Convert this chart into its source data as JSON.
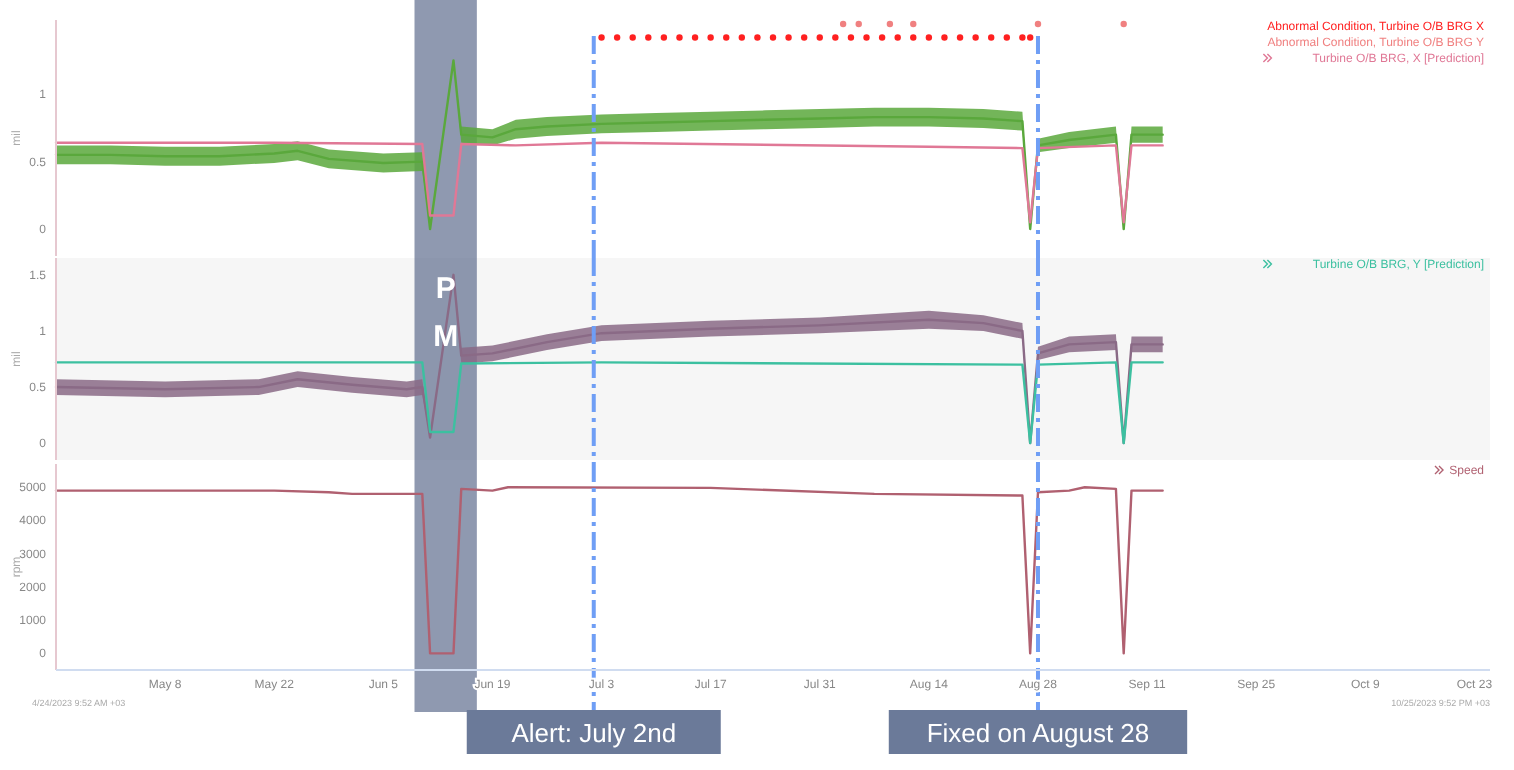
{
  "chart_data": [
    {
      "type": "line",
      "ylabel": "mil",
      "xlim": [
        "2023-04-24",
        "2023-10-25"
      ],
      "ylim": [
        -0.2,
        1.55
      ],
      "yticks": [
        0.0,
        0.5,
        1.0
      ],
      "tick_labels": "y",
      "legend": "top right",
      "series": [
        {
          "type": "scatter",
          "name": "Abnormal Condition, Turbine O/B BRG X",
          "color": "#ff2020",
          "x": [
            "2023-07-03",
            "2023-07-05",
            "2023-07-07",
            "2023-07-09",
            "2023-07-11",
            "2023-07-13",
            "2023-07-15",
            "2023-07-17",
            "2023-07-19",
            "2023-07-21",
            "2023-07-23",
            "2023-07-25",
            "2023-07-27",
            "2023-07-29",
            "2023-07-31",
            "2023-08-02",
            "2023-08-04",
            "2023-08-06",
            "2023-08-08",
            "2023-08-10",
            "2023-08-12",
            "2023-08-14",
            "2023-08-16",
            "2023-08-18",
            "2023-08-20",
            "2023-08-22",
            "2023-08-24",
            "2023-08-26",
            "2023-08-27"
          ],
          "values": [
            1.42,
            1.42,
            1.42,
            1.42,
            1.42,
            1.42,
            1.42,
            1.42,
            1.42,
            1.42,
            1.42,
            1.42,
            1.42,
            1.42,
            1.42,
            1.42,
            1.42,
            1.42,
            1.42,
            1.42,
            1.42,
            1.42,
            1.42,
            1.42,
            1.42,
            1.42,
            1.42,
            1.42,
            1.42
          ]
        },
        {
          "type": "scatter",
          "name": "Abnormal Condition, Turbine O/B BRG Y",
          "color": "#f08080",
          "x": [
            "2023-08-03",
            "2023-08-05",
            "2023-08-09",
            "2023-08-12",
            "2023-08-28",
            "2023-09-08"
          ],
          "values": [
            1.52,
            1.52,
            1.52,
            1.52,
            1.52,
            1.52
          ]
        },
        {
          "name": "Turbine O/B BRG, X [Prediction]",
          "color": "#e07896",
          "x": [
            "2023-04-24",
            "2023-05-22",
            "2023-06-10",
            "2023-06-11",
            "2023-06-14",
            "2023-06-15",
            "2023-06-22",
            "2023-07-03",
            "2023-08-14",
            "2023-08-26",
            "2023-08-27",
            "2023-08-28",
            "2023-09-07",
            "2023-09-08",
            "2023-09-09",
            "2023-09-13"
          ],
          "values": [
            0.64,
            0.64,
            0.63,
            0.1,
            0.1,
            0.63,
            0.62,
            0.64,
            0.61,
            0.6,
            0.05,
            0.6,
            0.62,
            0.05,
            0.62,
            0.62
          ]
        },
        {
          "color": "#5aa83c",
          "x": [
            "2023-04-24",
            "2023-05-01",
            "2023-05-08",
            "2023-05-15",
            "2023-05-22",
            "2023-05-25",
            "2023-05-29",
            "2023-06-05",
            "2023-06-10",
            "2023-06-11",
            "2023-06-14",
            "2023-06-15",
            "2023-06-19",
            "2023-06-22",
            "2023-06-26",
            "2023-07-03",
            "2023-07-10",
            "2023-07-17",
            "2023-07-24",
            "2023-07-31",
            "2023-08-07",
            "2023-08-14",
            "2023-08-21",
            "2023-08-26",
            "2023-08-27",
            "2023-08-28",
            "2023-09-01",
            "2023-09-07",
            "2023-09-08",
            "2023-09-09",
            "2023-09-13"
          ],
          "values": [
            0.55,
            0.55,
            0.54,
            0.54,
            0.56,
            0.58,
            0.52,
            0.49,
            0.5,
            0.0,
            1.25,
            0.7,
            0.68,
            0.74,
            0.76,
            0.78,
            0.79,
            0.8,
            0.81,
            0.82,
            0.83,
            0.83,
            0.82,
            0.8,
            0.0,
            0.62,
            0.66,
            0.7,
            0.0,
            0.7,
            0.7
          ],
          "lower": [
            0.48,
            0.48,
            0.47,
            0.47,
            0.49,
            0.51,
            0.45,
            0.42,
            0.43,
            0.0,
            1.25,
            0.64,
            0.62,
            0.67,
            0.69,
            0.71,
            0.72,
            0.73,
            0.74,
            0.75,
            0.76,
            0.76,
            0.75,
            0.73,
            0.0,
            0.57,
            0.6,
            0.64,
            0.0,
            0.64,
            0.64
          ],
          "upper": [
            0.62,
            0.62,
            0.61,
            0.61,
            0.63,
            0.65,
            0.59,
            0.56,
            0.57,
            0.0,
            1.25,
            0.76,
            0.74,
            0.81,
            0.83,
            0.85,
            0.86,
            0.87,
            0.88,
            0.89,
            0.9,
            0.9,
            0.89,
            0.87,
            0.0,
            0.67,
            0.72,
            0.76,
            0.0,
            0.76,
            0.76
          ]
        }
      ],
      "bands": [
        {
          "axis": "x",
          "from": "2023-06-09",
          "to": "2023-06-17",
          "color": "#4a5a80"
        }
      ],
      "ref_lines": [
        {
          "axis": "x",
          "value": "2023-07-02",
          "color": "#6f9ef5",
          "line_style": "dashed"
        },
        {
          "axis": "x",
          "value": "2023-08-28",
          "color": "#6f9ef5",
          "line_style": "dashed"
        }
      ]
    },
    {
      "type": "line",
      "ylabel": "mil",
      "xlim": [
        "2023-04-24",
        "2023-10-25"
      ],
      "ylim": [
        -0.15,
        1.65
      ],
      "yticks": [
        0.0,
        0.5,
        1.0,
        1.5
      ],
      "tick_labels": "y",
      "legend": "top right",
      "series": [
        {
          "name": "Turbine O/B BRG, Y [Prediction]",
          "color": "#3cc0a0",
          "x": [
            "2023-04-24",
            "2023-06-10",
            "2023-06-11",
            "2023-06-14",
            "2023-06-15",
            "2023-07-03",
            "2023-08-26",
            "2023-08-27",
            "2023-08-28",
            "2023-09-07",
            "2023-09-08",
            "2023-09-09",
            "2023-09-13"
          ],
          "values": [
            0.72,
            0.72,
            0.1,
            0.1,
            0.71,
            0.72,
            0.7,
            0.0,
            0.7,
            0.72,
            0.0,
            0.72,
            0.72
          ]
        },
        {
          "color": "#8a6a86",
          "x": [
            "2023-04-24",
            "2023-05-08",
            "2023-05-20",
            "2023-05-25",
            "2023-06-01",
            "2023-06-08",
            "2023-06-10",
            "2023-06-11",
            "2023-06-14",
            "2023-06-15",
            "2023-06-19",
            "2023-06-26",
            "2023-07-03",
            "2023-07-17",
            "2023-07-31",
            "2023-08-14",
            "2023-08-21",
            "2023-08-26",
            "2023-08-27",
            "2023-08-28",
            "2023-09-01",
            "2023-09-07",
            "2023-09-08",
            "2023-09-09",
            "2023-09-13"
          ],
          "values": [
            0.5,
            0.48,
            0.5,
            0.57,
            0.52,
            0.48,
            0.5,
            0.05,
            1.5,
            0.78,
            0.8,
            0.9,
            0.98,
            1.02,
            1.05,
            1.1,
            1.07,
            1.0,
            0.0,
            0.8,
            0.88,
            0.9,
            0.0,
            0.88,
            0.88
          ],
          "lower": [
            0.43,
            0.41,
            0.43,
            0.5,
            0.45,
            0.41,
            0.43,
            0.05,
            1.5,
            0.71,
            0.73,
            0.83,
            0.91,
            0.95,
            0.98,
            1.02,
            1.0,
            0.93,
            0.0,
            0.74,
            0.81,
            0.83,
            0.0,
            0.81,
            0.81
          ],
          "upper": [
            0.57,
            0.55,
            0.57,
            0.64,
            0.59,
            0.55,
            0.57,
            0.05,
            1.5,
            0.85,
            0.87,
            0.97,
            1.05,
            1.09,
            1.12,
            1.18,
            1.14,
            1.07,
            0.0,
            0.86,
            0.95,
            0.97,
            0.0,
            0.95,
            0.95
          ]
        }
      ],
      "bands": [
        {
          "axis": "x",
          "from": "2023-06-09",
          "to": "2023-06-17",
          "label": "PM",
          "color": "#4a5a80"
        }
      ],
      "ref_lines": [
        {
          "axis": "x",
          "value": "2023-07-02",
          "color": "#6f9ef5",
          "line_style": "dashed"
        },
        {
          "axis": "x",
          "value": "2023-08-28",
          "color": "#6f9ef5",
          "line_style": "dashed"
        }
      ]
    },
    {
      "type": "line",
      "ylabel": "rpm",
      "xlim": [
        "2023-04-24",
        "2023-10-25"
      ],
      "ylim": [
        -500,
        5700
      ],
      "yticks": [
        0,
        1000,
        2000,
        3000,
        4000,
        5000
      ],
      "legend": "top right",
      "xticks": [
        {
          "value": "2023-05-08",
          "label": "May 8"
        },
        {
          "value": "2023-05-22",
          "label": "May 22"
        },
        {
          "value": "2023-06-05",
          "label": "Jun 5"
        },
        {
          "value": "2023-06-19",
          "label": "Jun 19"
        },
        {
          "value": "2023-07-03",
          "label": "Jul 3"
        },
        {
          "value": "2023-07-17",
          "label": "Jul 17"
        },
        {
          "value": "2023-07-31",
          "label": "Jul 31"
        },
        {
          "value": "2023-08-14",
          "label": "Aug 14"
        },
        {
          "value": "2023-08-28",
          "label": "Aug 28"
        },
        {
          "value": "2023-09-11",
          "label": "Sep 11"
        },
        {
          "value": "2023-09-25",
          "label": "Sep 25"
        },
        {
          "value": "2023-10-09",
          "label": "Oct 9"
        },
        {
          "value": "2023-10-23",
          "label": "Oct 23"
        }
      ],
      "series": [
        {
          "name": "Speed",
          "color": "#b06070",
          "x": [
            "2023-04-24",
            "2023-05-22",
            "2023-05-29",
            "2023-06-01",
            "2023-06-10",
            "2023-06-11",
            "2023-06-14",
            "2023-06-15",
            "2023-06-19",
            "2023-06-21",
            "2023-07-17",
            "2023-08-07",
            "2023-08-26",
            "2023-08-27",
            "2023-08-28",
            "2023-09-01",
            "2023-09-03",
            "2023-09-07",
            "2023-09-08",
            "2023-09-09",
            "2023-09-13"
          ],
          "values": [
            4900,
            4900,
            4850,
            4800,
            4800,
            0,
            0,
            4950,
            4900,
            5000,
            4980,
            4800,
            4750,
            0,
            4850,
            4900,
            5000,
            4950,
            0,
            4900,
            4900
          ]
        }
      ],
      "bands": [
        {
          "axis": "x",
          "from": "2023-06-09",
          "to": "2023-06-17",
          "color": "#4a5a80"
        }
      ],
      "ref_lines": [
        {
          "axis": "x",
          "value": "2023-07-02",
          "label": "Alert: July 2nd",
          "color": "#6f9ef5",
          "line_style": "dashed"
        },
        {
          "axis": "x",
          "value": "2023-08-28",
          "label": "Fixed on August 28",
          "color": "#6f9ef5",
          "line_style": "dashed"
        }
      ],
      "annotations": [
        "4/24/2023 9:52 AM +03",
        "10/25/2023 9:52 PM +03"
      ]
    }
  ]
}
